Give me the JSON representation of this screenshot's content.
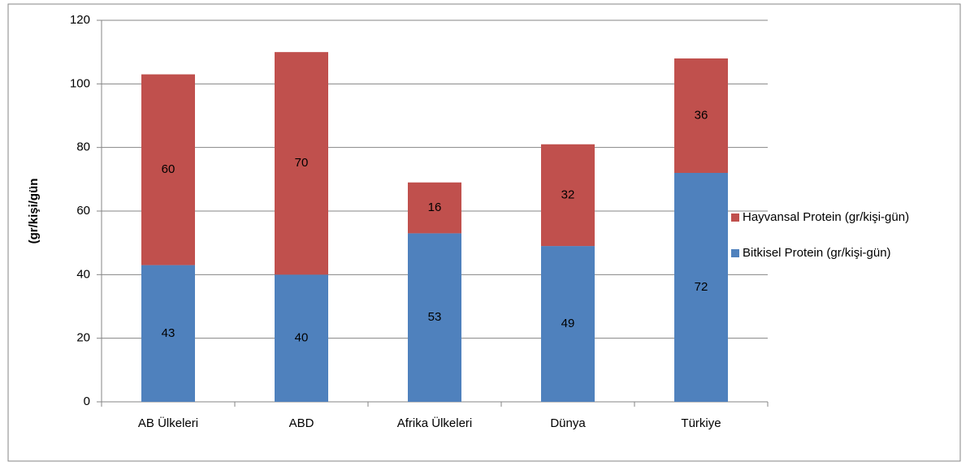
{
  "chart_data": {
    "type": "stacked-bar",
    "y_label": "(gr/kişi/gün",
    "categories": [
      "AB Ülkeleri",
      "ABD",
      "Afrika Ülkeleri",
      "Dünya",
      "Türkiye"
    ],
    "series": [
      {
        "name": "Bitkisel Protein (gr/kişi-gün)",
        "color": "#4f81bd",
        "values": [
          43,
          40,
          53,
          49,
          72
        ]
      },
      {
        "name": "Hayvansal Protein (gr/kişi-gün)",
        "color": "#c0504d",
        "values": [
          60,
          70,
          16,
          32,
          36
        ]
      }
    ],
    "ylim": [
      0,
      120
    ],
    "yticks": [
      0,
      20,
      40,
      60,
      80,
      100,
      120
    ],
    "grid": true,
    "legend": "right"
  }
}
